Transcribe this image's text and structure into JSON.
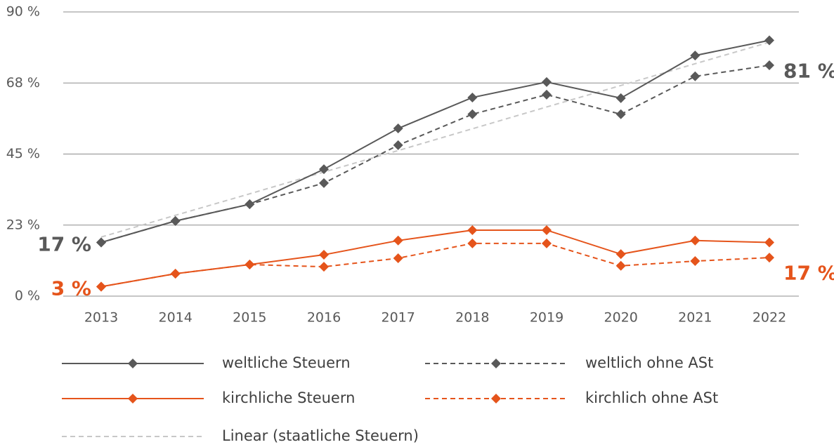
{
  "chart_data": {
    "type": "line",
    "categories": [
      "2013",
      "2014",
      "2015",
      "2016",
      "2017",
      "2018",
      "2019",
      "2020",
      "2021",
      "2022"
    ],
    "ylim": [
      0,
      90
    ],
    "yticks": [
      {
        "value": 0,
        "label": "0 %"
      },
      {
        "value": 22.5,
        "label": "23 %"
      },
      {
        "value": 45,
        "label": "45 %"
      },
      {
        "value": 67.5,
        "label": "68 %"
      },
      {
        "value": 90,
        "label": "90 %"
      }
    ],
    "grid": true,
    "legend": "bottom",
    "series": [
      {
        "name": "weltliche Steuern",
        "color": "#595959",
        "dashed": false,
        "markers": true,
        "values": [
          17,
          23.8,
          29.1,
          40.2,
          53.1,
          62.9,
          67.8,
          62.7,
          76.2,
          81
        ],
        "value_labels": [
          "17 %",
          null,
          null,
          null,
          null,
          null,
          null,
          null,
          null,
          "81 %"
        ]
      },
      {
        "name": "weltlich ohne ASt",
        "color": "#595959",
        "dashed": true,
        "markers": true,
        "values": [
          17,
          23.8,
          29.1,
          35.8,
          47.8,
          57.6,
          63.8,
          57.6,
          69.6,
          73.1
        ]
      },
      {
        "name": "kirchliche Steuern",
        "color": "#e5541b",
        "dashed": false,
        "markers": true,
        "values": [
          3,
          7.1,
          10,
          13.1,
          17.6,
          20.9,
          20.9,
          13.3,
          17.6,
          17
        ],
        "value_labels": [
          "3 %",
          null,
          null,
          null,
          null,
          null,
          null,
          null,
          null,
          "17 %"
        ]
      },
      {
        "name": "kirchlich ohne ASt",
        "color": "#e5541b",
        "dashed": true,
        "markers": true,
        "values": [
          3,
          7.1,
          10,
          9.3,
          12,
          16.7,
          16.7,
          9.6,
          11.1,
          12.2
        ]
      },
      {
        "name": "Linear (staatliche Steuern)",
        "color": "#c8c8c8",
        "dashed": true,
        "markers": false,
        "values": [
          18.7,
          25.6,
          32.4,
          39.3,
          46.1,
          53.0,
          59.9,
          66.7,
          73.6,
          80.4
        ]
      }
    ]
  }
}
